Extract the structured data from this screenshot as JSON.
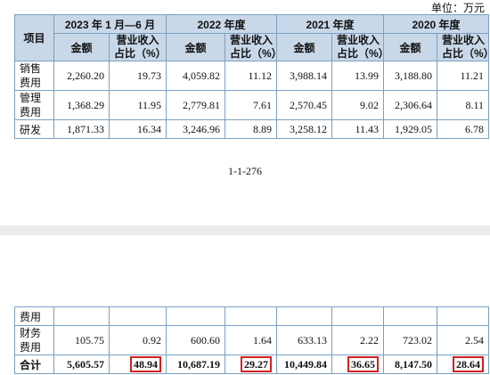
{
  "unit": "单位：万元",
  "periods": [
    "2023 年 1 月—6 月",
    "2022 年度",
    "2021 年度",
    "2020 年度"
  ],
  "headers": {
    "item": "项目",
    "amount": "金额",
    "ratio_line1": "营业收入",
    "ratio_line2": "占比（%）"
  },
  "page_number": "1-1-276",
  "rows_top": [
    {
      "label1": "销售",
      "label2": "费用",
      "v": [
        "2,260.20",
        "19.73",
        "4,059.82",
        "11.12",
        "3,988.14",
        "13.99",
        "3,188.80",
        "11.21"
      ]
    },
    {
      "label1": "管理",
      "label2": "费用",
      "v": [
        "1,368.29",
        "11.95",
        "2,779.81",
        "7.61",
        "2,570.45",
        "9.02",
        "2,306.64",
        "8.11"
      ]
    },
    {
      "label1": "研发",
      "v": [
        "1,871.33",
        "16.34",
        "3,246.96",
        "8.89",
        "3,258.12",
        "11.43",
        "1,929.05",
        "6.78"
      ]
    }
  ],
  "rows_bottom": [
    {
      "label1": "费用",
      "v": [
        "",
        "",
        "",
        "",
        "",
        "",
        "",
        ""
      ]
    },
    {
      "label1": "财务",
      "label2": "费用",
      "v": [
        "105.75",
        "0.92",
        "600.60",
        "1.64",
        "633.13",
        "2.22",
        "723.02",
        "2.54"
      ]
    },
    {
      "label1": "合计",
      "v": [
        "5,605.57",
        "48.94",
        "10,687.19",
        "29.27",
        "10,449.84",
        "36.65",
        "8,147.50",
        "28.64"
      ]
    }
  ]
}
